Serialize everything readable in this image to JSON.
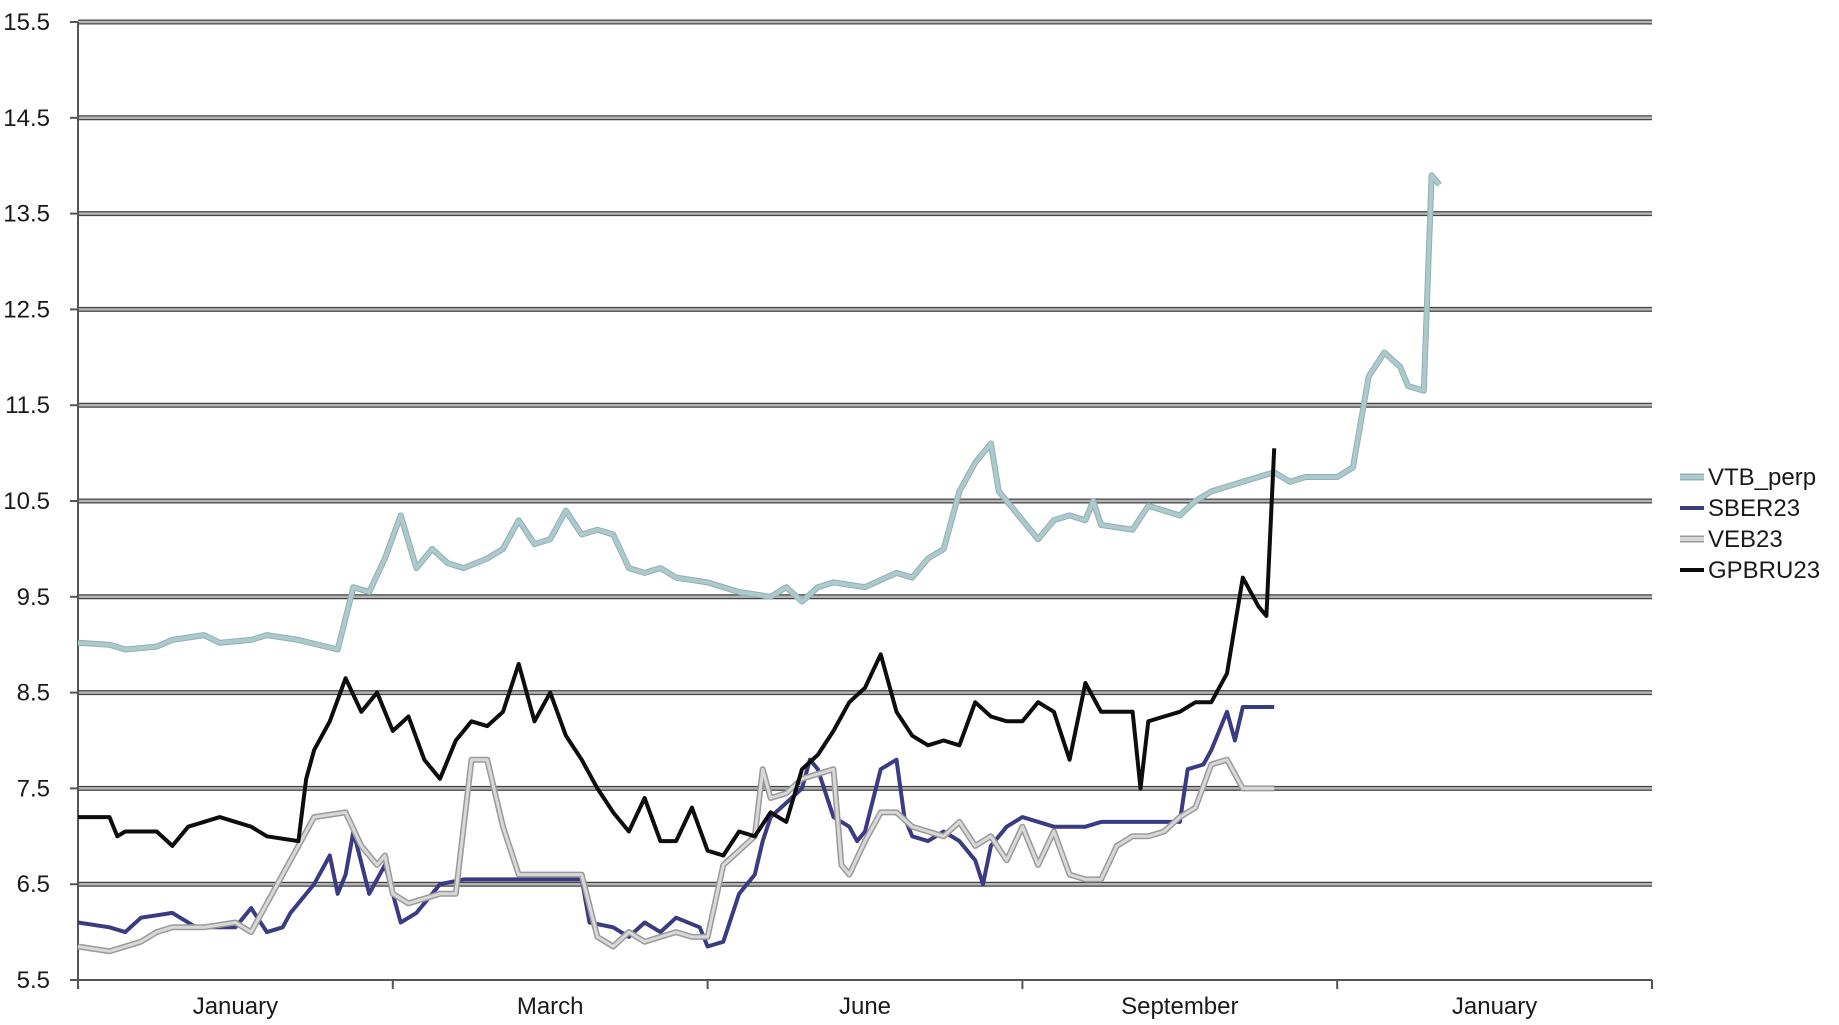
{
  "chart_data": {
    "type": "line",
    "title": "",
    "xlabel": "",
    "ylabel": "",
    "x_tick_labels": [
      "January",
      "March",
      "June",
      "September",
      "January"
    ],
    "y_ticks": [
      5.5,
      6.5,
      7.5,
      8.5,
      9.5,
      10.5,
      11.5,
      12.5,
      13.5,
      14.5,
      15.5
    ],
    "ylim": [
      5.5,
      15.5
    ],
    "grid": "horizontal",
    "legend_position": "right",
    "series": [
      {
        "name": "VTB_perp",
        "color": "#aec9cc",
        "points": [
          [
            0.0,
            9.02
          ],
          [
            2.0,
            9.0
          ],
          [
            3.0,
            8.95
          ],
          [
            5.0,
            8.98
          ],
          [
            6.0,
            9.05
          ],
          [
            8.0,
            9.1
          ],
          [
            9.0,
            9.02
          ],
          [
            11.0,
            9.05
          ],
          [
            12.0,
            9.1
          ],
          [
            14.0,
            9.05
          ],
          [
            16.5,
            8.95
          ],
          [
            17.5,
            9.6
          ],
          [
            18.5,
            9.55
          ],
          [
            19.5,
            9.9
          ],
          [
            20.5,
            10.35
          ],
          [
            21.5,
            9.8
          ],
          [
            22.5,
            10.0
          ],
          [
            23.5,
            9.85
          ],
          [
            24.5,
            9.8
          ],
          [
            26.0,
            9.9
          ],
          [
            27.0,
            10.0
          ],
          [
            28.0,
            10.3
          ],
          [
            29.0,
            10.05
          ],
          [
            30.0,
            10.1
          ],
          [
            31.0,
            10.4
          ],
          [
            32.0,
            10.15
          ],
          [
            33.0,
            10.2
          ],
          [
            34.0,
            10.15
          ],
          [
            35.0,
            9.8
          ],
          [
            36.0,
            9.75
          ],
          [
            37.0,
            9.8
          ],
          [
            38.0,
            9.7
          ],
          [
            40.0,
            9.65
          ],
          [
            42.0,
            9.55
          ],
          [
            44.0,
            9.5
          ],
          [
            45.0,
            9.6
          ],
          [
            46.0,
            9.45
          ],
          [
            47.0,
            9.6
          ],
          [
            48.0,
            9.65
          ],
          [
            50.0,
            9.6
          ],
          [
            52.0,
            9.75
          ],
          [
            53.0,
            9.7
          ],
          [
            54.0,
            9.9
          ],
          [
            55.0,
            10.0
          ],
          [
            56.0,
            10.6
          ],
          [
            57.0,
            10.9
          ],
          [
            58.0,
            11.1
          ],
          [
            58.5,
            10.6
          ],
          [
            59.0,
            10.5
          ],
          [
            60.0,
            10.3
          ],
          [
            61.0,
            10.1
          ],
          [
            62.0,
            10.3
          ],
          [
            63.0,
            10.35
          ],
          [
            64.0,
            10.3
          ],
          [
            64.5,
            10.5
          ],
          [
            65.0,
            10.25
          ],
          [
            67.0,
            10.2
          ],
          [
            68.0,
            10.45
          ],
          [
            69.0,
            10.4
          ],
          [
            70.0,
            10.35
          ],
          [
            71.0,
            10.5
          ],
          [
            72.0,
            10.6
          ],
          [
            73.0,
            10.65
          ],
          [
            74.0,
            10.7
          ],
          [
            75.0,
            10.75
          ],
          [
            76.0,
            10.8
          ],
          [
            77.0,
            10.7
          ],
          [
            78.0,
            10.75
          ],
          [
            80.0,
            10.75
          ],
          [
            81.0,
            10.85
          ],
          [
            82.0,
            11.8
          ],
          [
            83.0,
            12.05
          ],
          [
            84.0,
            11.9
          ],
          [
            84.5,
            11.7
          ],
          [
            85.5,
            11.65
          ],
          [
            86.0,
            13.9
          ],
          [
            86.5,
            13.8
          ]
        ]
      },
      {
        "name": "SBER23",
        "color": "#3b3b84",
        "points": [
          [
            0.0,
            6.1
          ],
          [
            2.0,
            6.05
          ],
          [
            3.0,
            6.0
          ],
          [
            4.0,
            6.15
          ],
          [
            6.0,
            6.2
          ],
          [
            7.5,
            6.05
          ],
          [
            10.0,
            6.05
          ],
          [
            11.0,
            6.25
          ],
          [
            12.0,
            6.0
          ],
          [
            13.0,
            6.05
          ],
          [
            13.5,
            6.2
          ],
          [
            15.0,
            6.5
          ],
          [
            16.0,
            6.8
          ],
          [
            16.5,
            6.4
          ],
          [
            17.0,
            6.6
          ],
          [
            17.5,
            7.05
          ],
          [
            18.5,
            6.4
          ],
          [
            19.5,
            6.7
          ],
          [
            20.5,
            6.1
          ],
          [
            21.5,
            6.2
          ],
          [
            22.5,
            6.4
          ],
          [
            23.0,
            6.5
          ],
          [
            24.5,
            6.55
          ],
          [
            26.0,
            6.55
          ],
          [
            28.0,
            6.55
          ],
          [
            30.0,
            6.55
          ],
          [
            32.0,
            6.55
          ],
          [
            32.5,
            6.1
          ],
          [
            34.0,
            6.05
          ],
          [
            35.0,
            5.95
          ],
          [
            36.0,
            6.1
          ],
          [
            37.0,
            6.0
          ],
          [
            38.0,
            6.15
          ],
          [
            39.5,
            6.05
          ],
          [
            40.0,
            5.85
          ],
          [
            41.0,
            5.9
          ],
          [
            42.0,
            6.4
          ],
          [
            43.0,
            6.6
          ],
          [
            43.5,
            6.95
          ],
          [
            44.0,
            7.2
          ],
          [
            45.0,
            7.35
          ],
          [
            46.0,
            7.5
          ],
          [
            46.5,
            7.8
          ],
          [
            47.0,
            7.7
          ],
          [
            48.0,
            7.2
          ],
          [
            49.0,
            7.1
          ],
          [
            49.5,
            6.95
          ],
          [
            50.0,
            7.05
          ],
          [
            51.0,
            7.7
          ],
          [
            52.0,
            7.8
          ],
          [
            52.5,
            7.2
          ],
          [
            53.0,
            7.0
          ],
          [
            54.0,
            6.95
          ],
          [
            55.0,
            7.05
          ],
          [
            56.0,
            6.95
          ],
          [
            57.0,
            6.75
          ],
          [
            57.5,
            6.5
          ],
          [
            58.0,
            6.9
          ],
          [
            59.0,
            7.1
          ],
          [
            60.0,
            7.2
          ],
          [
            62.0,
            7.1
          ],
          [
            64.0,
            7.1
          ],
          [
            65.0,
            7.15
          ],
          [
            66.0,
            7.15
          ],
          [
            68.0,
            7.15
          ],
          [
            70.0,
            7.15
          ],
          [
            70.5,
            7.7
          ],
          [
            71.5,
            7.75
          ],
          [
            72.0,
            7.9
          ],
          [
            73.0,
            8.3
          ],
          [
            73.5,
            8.0
          ],
          [
            74.0,
            8.35
          ],
          [
            76.0,
            8.35
          ]
        ]
      },
      {
        "name": "VEB23",
        "color": "#d8d8d8",
        "points": [
          [
            0.0,
            5.85
          ],
          [
            2.0,
            5.8
          ],
          [
            3.0,
            5.85
          ],
          [
            4.0,
            5.9
          ],
          [
            5.0,
            6.0
          ],
          [
            6.0,
            6.05
          ],
          [
            8.0,
            6.05
          ],
          [
            10.0,
            6.1
          ],
          [
            11.0,
            6.0
          ],
          [
            12.0,
            6.3
          ],
          [
            13.0,
            6.6
          ],
          [
            14.0,
            6.9
          ],
          [
            15.0,
            7.2
          ],
          [
            17.0,
            7.25
          ],
          [
            18.0,
            6.9
          ],
          [
            19.0,
            6.7
          ],
          [
            19.5,
            6.8
          ],
          [
            20.0,
            6.4
          ],
          [
            21.0,
            6.3
          ],
          [
            22.0,
            6.35
          ],
          [
            23.0,
            6.4
          ],
          [
            24.0,
            6.4
          ],
          [
            25.0,
            7.8
          ],
          [
            26.0,
            7.8
          ],
          [
            27.0,
            7.1
          ],
          [
            28.0,
            6.6
          ],
          [
            29.0,
            6.6
          ],
          [
            30.0,
            6.6
          ],
          [
            31.0,
            6.6
          ],
          [
            32.0,
            6.6
          ],
          [
            33.0,
            5.95
          ],
          [
            34.0,
            5.85
          ],
          [
            35.0,
            6.0
          ],
          [
            36.0,
            5.9
          ],
          [
            37.0,
            5.95
          ],
          [
            38.0,
            6.0
          ],
          [
            39.0,
            5.95
          ],
          [
            40.0,
            5.95
          ],
          [
            41.0,
            6.7
          ],
          [
            42.0,
            6.85
          ],
          [
            43.0,
            7.0
          ],
          [
            43.5,
            7.7
          ],
          [
            44.0,
            7.4
          ],
          [
            45.0,
            7.45
          ],
          [
            46.0,
            7.6
          ],
          [
            47.0,
            7.65
          ],
          [
            48.0,
            7.7
          ],
          [
            48.5,
            6.7
          ],
          [
            49.0,
            6.6
          ],
          [
            50.0,
            6.95
          ],
          [
            51.0,
            7.25
          ],
          [
            52.0,
            7.25
          ],
          [
            53.0,
            7.1
          ],
          [
            54.0,
            7.05
          ],
          [
            55.0,
            7.0
          ],
          [
            56.0,
            7.15
          ],
          [
            57.0,
            6.9
          ],
          [
            58.0,
            7.0
          ],
          [
            59.0,
            6.75
          ],
          [
            60.0,
            7.1
          ],
          [
            61.0,
            6.7
          ],
          [
            62.0,
            7.05
          ],
          [
            63.0,
            6.6
          ],
          [
            64.0,
            6.55
          ],
          [
            65.0,
            6.55
          ],
          [
            66.0,
            6.9
          ],
          [
            67.0,
            7.0
          ],
          [
            68.0,
            7.0
          ],
          [
            69.0,
            7.05
          ],
          [
            70.0,
            7.2
          ],
          [
            71.0,
            7.3
          ],
          [
            72.0,
            7.75
          ],
          [
            73.0,
            7.8
          ],
          [
            74.0,
            7.5
          ],
          [
            76.0,
            7.5
          ]
        ]
      },
      {
        "name": "GPBRU23",
        "color": "#0d0d0d",
        "points": [
          [
            0.0,
            7.2
          ],
          [
            2.0,
            7.2
          ],
          [
            2.5,
            7.0
          ],
          [
            3.0,
            7.05
          ],
          [
            5.0,
            7.05
          ],
          [
            6.0,
            6.9
          ],
          [
            7.0,
            7.1
          ],
          [
            8.0,
            7.15
          ],
          [
            9.0,
            7.2
          ],
          [
            11.0,
            7.1
          ],
          [
            12.0,
            7.0
          ],
          [
            14.0,
            6.95
          ],
          [
            14.5,
            7.6
          ],
          [
            15.0,
            7.9
          ],
          [
            16.0,
            8.2
          ],
          [
            17.0,
            8.65
          ],
          [
            18.0,
            8.3
          ],
          [
            19.0,
            8.5
          ],
          [
            20.0,
            8.1
          ],
          [
            21.0,
            8.25
          ],
          [
            22.0,
            7.8
          ],
          [
            23.0,
            7.6
          ],
          [
            24.0,
            8.0
          ],
          [
            25.0,
            8.2
          ],
          [
            26.0,
            8.15
          ],
          [
            27.0,
            8.3
          ],
          [
            28.0,
            8.8
          ],
          [
            29.0,
            8.2
          ],
          [
            30.0,
            8.5
          ],
          [
            31.0,
            8.05
          ],
          [
            32.0,
            7.8
          ],
          [
            33.0,
            7.5
          ],
          [
            34.0,
            7.25
          ],
          [
            35.0,
            7.05
          ],
          [
            36.0,
            7.4
          ],
          [
            37.0,
            6.95
          ],
          [
            38.0,
            6.95
          ],
          [
            39.0,
            7.3
          ],
          [
            40.0,
            6.85
          ],
          [
            41.0,
            6.8
          ],
          [
            42.0,
            7.05
          ],
          [
            43.0,
            7.0
          ],
          [
            44.0,
            7.25
          ],
          [
            45.0,
            7.15
          ],
          [
            46.0,
            7.7
          ],
          [
            47.0,
            7.85
          ],
          [
            48.0,
            8.1
          ],
          [
            49.0,
            8.4
          ],
          [
            50.0,
            8.55
          ],
          [
            51.0,
            8.9
          ],
          [
            52.0,
            8.3
          ],
          [
            53.0,
            8.05
          ],
          [
            54.0,
            7.95
          ],
          [
            55.0,
            8.0
          ],
          [
            56.0,
            7.95
          ],
          [
            57.0,
            8.4
          ],
          [
            58.0,
            8.25
          ],
          [
            59.0,
            8.2
          ],
          [
            60.0,
            8.2
          ],
          [
            61.0,
            8.4
          ],
          [
            62.0,
            8.3
          ],
          [
            63.0,
            7.8
          ],
          [
            64.0,
            8.6
          ],
          [
            65.0,
            8.3
          ],
          [
            66.0,
            8.3
          ],
          [
            67.0,
            8.3
          ],
          [
            67.5,
            7.5
          ],
          [
            68.0,
            8.2
          ],
          [
            69.0,
            8.25
          ],
          [
            70.0,
            8.3
          ],
          [
            71.0,
            8.4
          ],
          [
            72.0,
            8.4
          ],
          [
            73.0,
            8.7
          ],
          [
            74.0,
            9.7
          ],
          [
            75.0,
            9.4
          ],
          [
            75.5,
            9.3
          ],
          [
            76.0,
            11.05
          ]
        ]
      }
    ]
  }
}
